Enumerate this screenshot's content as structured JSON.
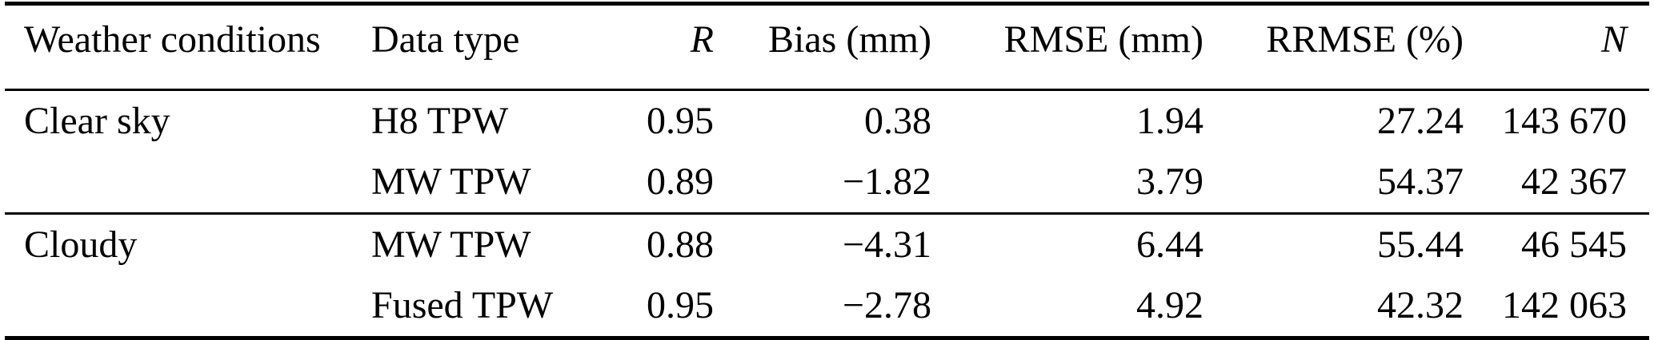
{
  "table": {
    "title_semantic": "TPW validation statistics by weather condition",
    "columns": [
      {
        "label": "Weather conditions"
      },
      {
        "label": "Data type"
      },
      {
        "label": "R"
      },
      {
        "label": "Bias (mm)"
      },
      {
        "label": "RMSE (mm)"
      },
      {
        "label": "RRMSE (%)"
      },
      {
        "label": "N"
      }
    ],
    "sections": [
      {
        "rows": [
          {
            "weather": "Clear sky",
            "data_type": "H8 TPW",
            "r": "0.95",
            "bias": "0.38",
            "rmse": "1.94",
            "rrmse": "27.24",
            "n": "143 670"
          },
          {
            "weather": "",
            "data_type": "MW TPW",
            "r": "0.89",
            "bias": "−1.82",
            "rmse": "3.79",
            "rrmse": "54.37",
            "n": "42 367"
          }
        ]
      },
      {
        "rows": [
          {
            "weather": "Cloudy",
            "data_type": "MW TPW",
            "r": "0.88",
            "bias": "−4.31",
            "rmse": "6.44",
            "rrmse": "55.44",
            "n": "46 545"
          },
          {
            "weather": "",
            "data_type": "Fused TPW",
            "r": "0.95",
            "bias": "−2.78",
            "rmse": "4.92",
            "rrmse": "42.32",
            "n": "142 063"
          }
        ]
      }
    ]
  }
}
